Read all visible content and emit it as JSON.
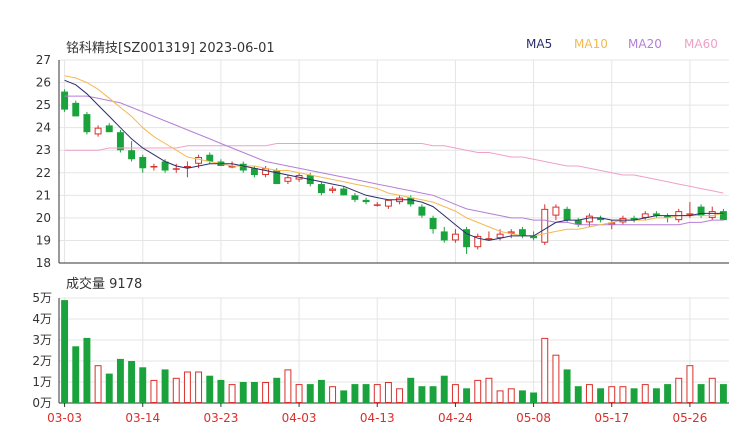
{
  "header": {
    "title": "铭科精技[SZ001319] 2023-06-01",
    "volume_label": "成交量 9178"
  },
  "legend": [
    {
      "name": "MA5",
      "color": "#2a2f6e"
    },
    {
      "name": "MA10",
      "color": "#f4b952"
    },
    {
      "name": "MA20",
      "color": "#b57fd7"
    },
    {
      "name": "MA60",
      "color": "#f0a0c8"
    }
  ],
  "colors": {
    "up": "#d9302b",
    "down": "#1aa33c",
    "grid": "#e5e5e5",
    "axis": "#333333"
  },
  "chart_data": [
    {
      "type": "candlestick",
      "name": "price",
      "ylim": [
        18,
        27
      ],
      "yticks": [
        "18",
        "19",
        "20",
        "21",
        "22",
        "23",
        "24",
        "25",
        "26",
        "27"
      ],
      "x_tick_labels": [
        {
          "index": 0,
          "label": "03-03"
        },
        {
          "index": 7,
          "label": "03-14"
        },
        {
          "index": 14,
          "label": "03-23"
        },
        {
          "index": 21,
          "label": "04-03"
        },
        {
          "index": 28,
          "label": "04-13"
        },
        {
          "index": 35,
          "label": "04-24"
        },
        {
          "index": 42,
          "label": "05-08"
        },
        {
          "index": 49,
          "label": "05-17"
        },
        {
          "index": 56,
          "label": "05-26"
        }
      ],
      "ohlc": [
        [
          25.6,
          25.7,
          24.7,
          24.8
        ],
        [
          25.1,
          25.2,
          24.5,
          24.5
        ],
        [
          24.6,
          24.7,
          23.7,
          23.8
        ],
        [
          23.7,
          24.1,
          23.6,
          24.0
        ],
        [
          24.1,
          24.2,
          23.8,
          23.8
        ],
        [
          23.8,
          23.9,
          22.9,
          23.0
        ],
        [
          23.0,
          23.4,
          22.5,
          22.6
        ],
        [
          22.7,
          22.8,
          22.0,
          22.2
        ],
        [
          22.3,
          22.4,
          22.1,
          22.3
        ],
        [
          22.5,
          22.6,
          22.0,
          22.1
        ],
        [
          22.2,
          22.4,
          22.0,
          22.2
        ],
        [
          22.3,
          22.5,
          21.8,
          22.3
        ],
        [
          22.4,
          22.8,
          22.2,
          22.7
        ],
        [
          22.8,
          22.9,
          22.4,
          22.5
        ],
        [
          22.5,
          22.6,
          22.3,
          22.3
        ],
        [
          22.3,
          22.5,
          22.2,
          22.3
        ],
        [
          22.4,
          22.5,
          22.0,
          22.1
        ],
        [
          22.2,
          22.3,
          21.8,
          21.9
        ],
        [
          21.9,
          22.3,
          21.8,
          22.2
        ],
        [
          22.1,
          22.2,
          21.5,
          21.5
        ],
        [
          21.6,
          21.9,
          21.5,
          21.8
        ],
        [
          21.7,
          22.0,
          21.6,
          21.9
        ],
        [
          21.9,
          22.0,
          21.4,
          21.5
        ],
        [
          21.5,
          21.6,
          21.0,
          21.1
        ],
        [
          21.2,
          21.4,
          21.1,
          21.3
        ],
        [
          21.3,
          21.4,
          21.0,
          21.0
        ],
        [
          21.0,
          21.1,
          20.7,
          20.8
        ],
        [
          20.8,
          20.9,
          20.6,
          20.7
        ],
        [
          20.6,
          20.7,
          20.5,
          20.6
        ],
        [
          20.5,
          20.8,
          20.4,
          20.8
        ],
        [
          20.7,
          21.0,
          20.6,
          20.9
        ],
        [
          20.9,
          21.0,
          20.5,
          20.6
        ],
        [
          20.5,
          20.6,
          20.0,
          20.1
        ],
        [
          20.0,
          20.1,
          19.3,
          19.5
        ],
        [
          19.4,
          19.6,
          18.9,
          19.0
        ],
        [
          19.0,
          19.5,
          18.9,
          19.3
        ],
        [
          19.5,
          19.6,
          18.4,
          18.7
        ],
        [
          18.7,
          19.3,
          18.6,
          19.2
        ],
        [
          19.1,
          19.4,
          19.0,
          19.1
        ],
        [
          19.1,
          19.5,
          19.0,
          19.3
        ],
        [
          19.3,
          19.5,
          19.1,
          19.4
        ],
        [
          19.5,
          19.6,
          19.1,
          19.2
        ],
        [
          19.2,
          19.4,
          19.0,
          19.1
        ],
        [
          18.9,
          20.6,
          18.8,
          20.4
        ],
        [
          20.1,
          20.6,
          19.9,
          20.5
        ],
        [
          20.4,
          20.5,
          19.8,
          19.9
        ],
        [
          19.9,
          20.0,
          19.6,
          19.7
        ],
        [
          19.8,
          20.2,
          19.6,
          20.1
        ],
        [
          20.0,
          20.1,
          19.8,
          19.9
        ],
        [
          19.7,
          19.9,
          19.5,
          19.8
        ],
        [
          19.8,
          20.1,
          19.7,
          20.0
        ],
        [
          20.0,
          20.1,
          19.8,
          19.9
        ],
        [
          20.0,
          20.3,
          19.9,
          20.2
        ],
        [
          20.2,
          20.3,
          20.0,
          20.1
        ],
        [
          20.1,
          20.2,
          19.8,
          20.0
        ],
        [
          19.9,
          20.4,
          19.8,
          20.3
        ],
        [
          20.2,
          20.7,
          20.0,
          20.2
        ],
        [
          20.5,
          20.6,
          20.0,
          20.1
        ],
        [
          20.0,
          20.5,
          19.9,
          20.3
        ],
        [
          20.3,
          20.4,
          19.9,
          19.9
        ]
      ],
      "ma": {
        "MA5": [
          26.1,
          25.9,
          25.5,
          25.0,
          24.5,
          24.0,
          23.5,
          23.1,
          22.8,
          22.5,
          22.3,
          22.2,
          22.3,
          22.4,
          22.4,
          22.4,
          22.3,
          22.2,
          22.1,
          22.0,
          21.9,
          21.8,
          21.7,
          21.6,
          21.5,
          21.4,
          21.2,
          21.0,
          20.9,
          20.8,
          20.8,
          20.8,
          20.7,
          20.5,
          20.1,
          19.7,
          19.3,
          19.1,
          19.0,
          19.1,
          19.2,
          19.2,
          19.2,
          19.5,
          19.8,
          19.9,
          19.9,
          20.0,
          20.0,
          19.9,
          19.9,
          19.9,
          20.0,
          20.1,
          20.1,
          20.1,
          20.1,
          20.2,
          20.2,
          20.2
        ],
        "MA10": [
          26.3,
          26.2,
          26.0,
          25.7,
          25.3,
          24.9,
          24.5,
          24.0,
          23.6,
          23.3,
          23.0,
          22.7,
          22.6,
          22.5,
          22.4,
          22.3,
          22.3,
          22.3,
          22.2,
          22.1,
          22.1,
          22.0,
          21.9,
          21.8,
          21.7,
          21.6,
          21.5,
          21.4,
          21.3,
          21.1,
          21.0,
          20.9,
          20.8,
          20.7,
          20.5,
          20.3,
          20.0,
          19.8,
          19.6,
          19.4,
          19.3,
          19.2,
          19.2,
          19.3,
          19.4,
          19.5,
          19.5,
          19.6,
          19.7,
          19.8,
          19.9,
          19.9,
          19.9,
          20.0,
          20.0,
          20.1,
          20.1,
          20.1,
          20.1,
          20.2
        ],
        "MA20": [
          25.4,
          25.4,
          25.4,
          25.3,
          25.2,
          25.1,
          24.9,
          24.7,
          24.5,
          24.3,
          24.1,
          23.9,
          23.7,
          23.5,
          23.3,
          23.1,
          22.9,
          22.7,
          22.5,
          22.4,
          22.3,
          22.2,
          22.1,
          22.0,
          21.9,
          21.8,
          21.7,
          21.6,
          21.5,
          21.4,
          21.3,
          21.2,
          21.1,
          21.0,
          20.8,
          20.6,
          20.4,
          20.3,
          20.2,
          20.1,
          20.0,
          20.0,
          19.9,
          19.9,
          19.8,
          19.8,
          19.7,
          19.7,
          19.7,
          19.7,
          19.7,
          19.7,
          19.7,
          19.7,
          19.7,
          19.7,
          19.8,
          19.8,
          19.9,
          19.9
        ],
        "MA60": [
          23.0,
          23.0,
          23.0,
          23.0,
          23.1,
          23.1,
          23.1,
          23.1,
          23.1,
          23.1,
          23.1,
          23.2,
          23.2,
          23.2,
          23.2,
          23.2,
          23.2,
          23.2,
          23.2,
          23.3,
          23.3,
          23.3,
          23.3,
          23.3,
          23.3,
          23.3,
          23.3,
          23.3,
          23.3,
          23.3,
          23.3,
          23.3,
          23.3,
          23.2,
          23.2,
          23.1,
          23.0,
          22.9,
          22.9,
          22.8,
          22.7,
          22.7,
          22.6,
          22.5,
          22.4,
          22.3,
          22.3,
          22.2,
          22.1,
          22.0,
          21.9,
          21.9,
          21.8,
          21.7,
          21.6,
          21.5,
          21.4,
          21.3,
          21.2,
          21.1
        ]
      }
    },
    {
      "type": "bar",
      "name": "volume",
      "ylim": [
        0,
        5
      ],
      "yticks": [
        "0万",
        "1万",
        "2万",
        "3万",
        "4万",
        "5万"
      ],
      "values": [
        4.9,
        2.7,
        3.1,
        1.8,
        1.4,
        2.1,
        2.0,
        1.7,
        1.1,
        1.6,
        1.2,
        1.5,
        1.5,
        1.3,
        1.1,
        0.9,
        1.0,
        1.0,
        1.0,
        1.2,
        1.6,
        0.9,
        0.9,
        1.1,
        0.8,
        0.6,
        0.9,
        0.9,
        0.9,
        1.0,
        0.7,
        1.2,
        0.8,
        0.8,
        1.3,
        0.9,
        0.7,
        1.1,
        1.2,
        0.6,
        0.7,
        0.6,
        0.5,
        3.1,
        2.3,
        1.6,
        0.8,
        0.9,
        0.7,
        0.8,
        0.8,
        0.7,
        0.9,
        0.7,
        0.9,
        1.2,
        1.8,
        0.9,
        1.2,
        0.9
      ]
    }
  ]
}
